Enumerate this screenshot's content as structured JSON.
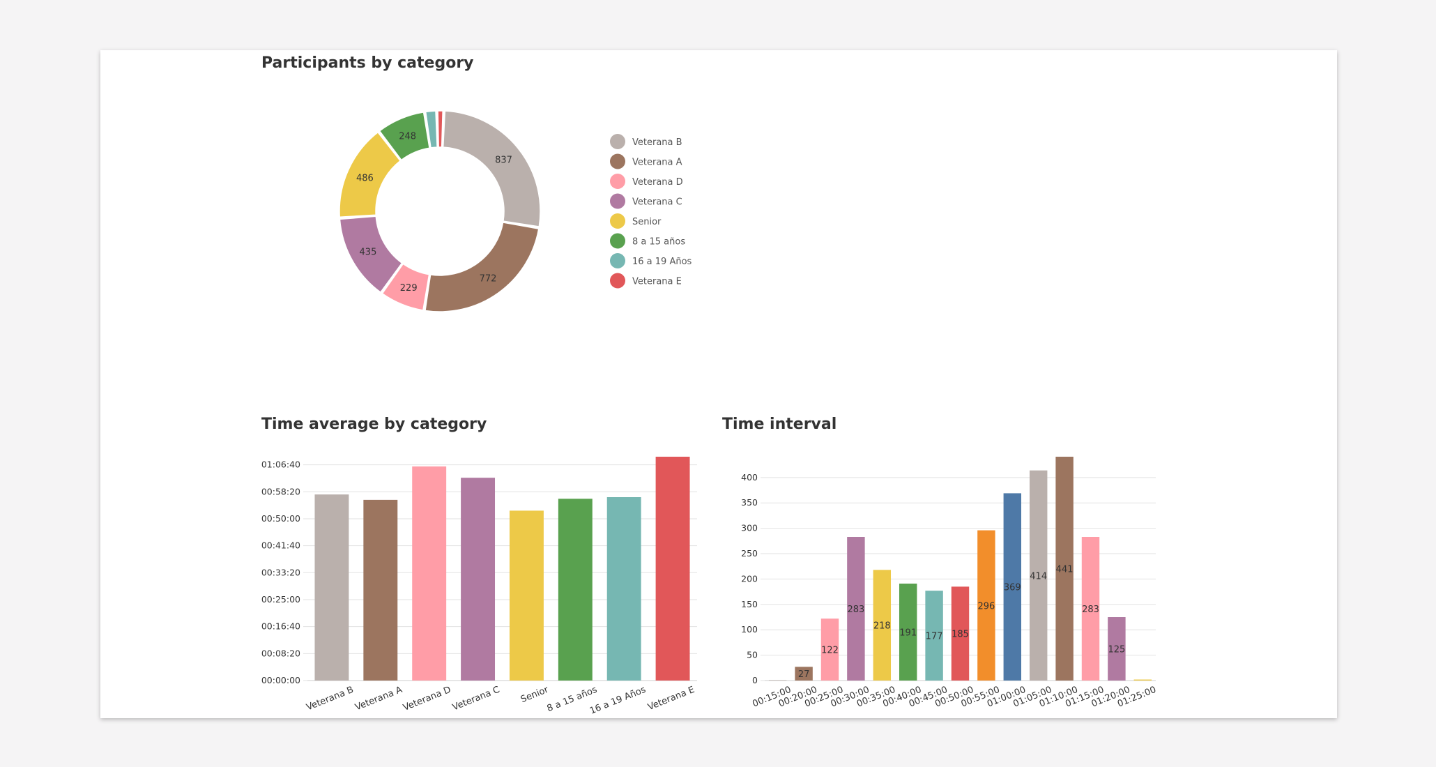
{
  "colors": {
    "Veterana B": "#bab0ac",
    "Veterana A": "#9c755f",
    "Veterana D": "#ff9da7",
    "Veterana C": "#b07aa1",
    "Senior": "#edc948",
    "8 a 15 años": "#59a14f",
    "16 a 19 Años": "#76b7b2",
    "Veterana E": "#e15759",
    "blue": "#4e79a7",
    "orange": "#f28e2b"
  },
  "chart_data": [
    {
      "type": "pie",
      "variant": "donut",
      "title": "Participants by category",
      "legend_position": "right",
      "categories": [
        "Veterana B",
        "Veterana A",
        "Veterana D",
        "Veterana C",
        "Senior",
        "8 a 15 años",
        "16 a 19 Años",
        "Veterana E"
      ],
      "values": [
        837,
        772,
        229,
        435,
        486,
        248,
        60,
        35
      ],
      "value_labels": [
        "837",
        "772",
        "229",
        "435",
        "486",
        "248",
        "",
        ""
      ]
    },
    {
      "type": "bar",
      "title": "Time average by category",
      "categories": [
        "Veterana B",
        "Veterana A",
        "Veterana D",
        "Veterana C",
        "Senior",
        "8 a 15 años",
        "16 a 19 Años",
        "Veterana E"
      ],
      "values": [
        3450,
        3350,
        3970,
        3760,
        3150,
        3370,
        3400,
        4150
      ],
      "value_unit": "seconds",
      "ylim": [
        0,
        4150
      ],
      "ytick_values": [
        0,
        500,
        1000,
        1500,
        2000,
        2500,
        3000,
        3500,
        4000
      ],
      "ytick_labels": [
        "00:00:00",
        "00:08:20",
        "00:16:40",
        "00:25:00",
        "00:33:20",
        "00:41:40",
        "00:50:00",
        "00:58:20",
        "01:06:40"
      ],
      "grid": true
    },
    {
      "type": "bar",
      "title": "Time interval",
      "categories": [
        "00:15:00",
        "00:20:00",
        "00:25:00",
        "00:30:00",
        "00:35:00",
        "00:40:00",
        "00:45:00",
        "00:50:00",
        "00:55:00",
        "01:00:00",
        "01:05:00",
        "01:10:00",
        "01:15:00",
        "01:20:00",
        "01:25:00"
      ],
      "values": [
        1,
        27,
        122,
        283,
        218,
        191,
        177,
        185,
        296,
        369,
        414,
        441,
        283,
        125,
        2
      ],
      "value_labels": [
        "",
        "27",
        "122",
        "283",
        "218",
        "191",
        "177",
        "185",
        "296",
        "369",
        "414",
        "441",
        "283",
        "125",
        ""
      ],
      "ylim": [
        0,
        441
      ],
      "ytick_values": [
        0,
        50,
        100,
        150,
        200,
        250,
        300,
        350,
        400
      ],
      "grid": true
    }
  ],
  "interval_colors": [
    "#bab0ac",
    "#9c755f",
    "#ff9da7",
    "#b07aa1",
    "#edc948",
    "#59a14f",
    "#76b7b2",
    "#e15759",
    "#f28e2b",
    "#4e79a7",
    "#bab0ac",
    "#9c755f",
    "#ff9da7",
    "#b07aa1",
    "#edc948"
  ]
}
